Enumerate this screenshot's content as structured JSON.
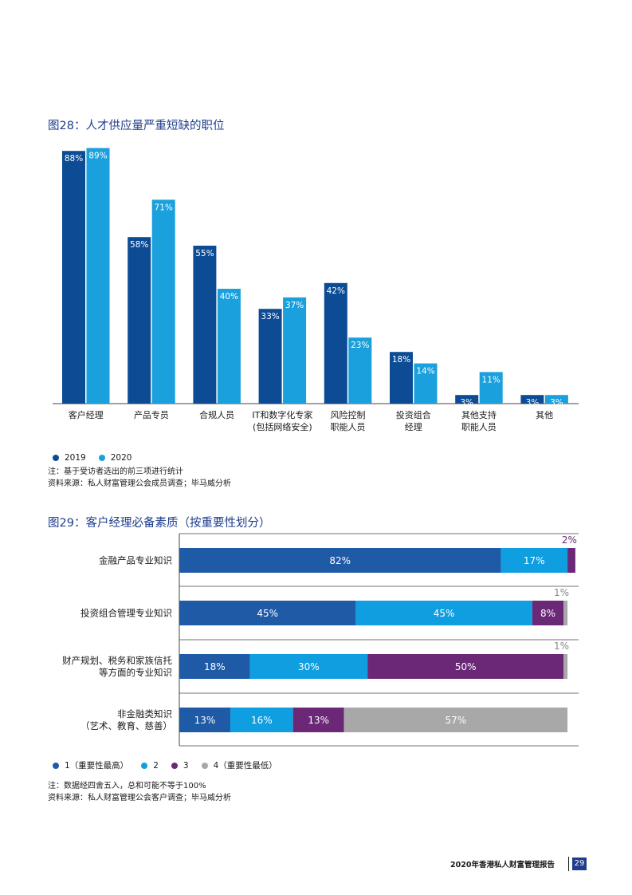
{
  "colors": {
    "y2019": "#0d4c95",
    "y2020": "#1aa0dc",
    "rank1": "#1f5aa6",
    "rank2": "#0f9ee0",
    "rank3": "#6a2877",
    "rank4": "#a8a8a8",
    "title": "#1e3d8c"
  },
  "fig28": {
    "title": "图28：人才供应量严重短缺的职位",
    "legend": [
      "2019",
      "2020"
    ],
    "note": "注：基于受访者选出的前三项进行统计",
    "source": "资料来源：私人财富管理公会成员调查；毕马威分析"
  },
  "fig29": {
    "title": "图29：客户经理必备素质（按重要性划分）",
    "legend": [
      "1（重要性最高）",
      "2",
      "3",
      "4（重要性最低）"
    ],
    "note": "注：数据经四舍五入，总和可能不等于100%",
    "source": "资料来源：私人财富管理公会客户调查；毕马威分析"
  },
  "chart_data": [
    {
      "type": "bar",
      "title": "图28：人才供应量严重短缺的职位",
      "categories": [
        [
          "客户经理"
        ],
        [
          "产品专员"
        ],
        [
          "合规人员"
        ],
        [
          "IT和数字化专家",
          "(包括网络安全)"
        ],
        [
          "风险控制",
          "职能人员"
        ],
        [
          "投资组合",
          "经理"
        ],
        [
          "其他支持",
          "职能人员"
        ],
        [
          "其他"
        ]
      ],
      "series": [
        {
          "name": "2019",
          "values": [
            88,
            58,
            55,
            33,
            42,
            18,
            3,
            3
          ]
        },
        {
          "name": "2020",
          "values": [
            89,
            71,
            40,
            37,
            23,
            14,
            11,
            3
          ]
        }
      ],
      "ylim": [
        0,
        100
      ],
      "value_suffix": "%",
      "grid": false,
      "legend_position": "bottom-left"
    },
    {
      "type": "bar",
      "orientation": "horizontal",
      "stacked": true,
      "title": "图29：客户经理必备素质（按重要性划分）",
      "categories": [
        [
          "金融产品专业知识"
        ],
        [
          "投资组合管理专业知识"
        ],
        [
          "财产规划、税务和家族信托",
          "等方面的专业知识"
        ],
        [
          "非金融类知识",
          "（艺术、教育、慈善）"
        ]
      ],
      "series": [
        {
          "name": "1（重要性最高）",
          "values": [
            82,
            45,
            18,
            13
          ]
        },
        {
          "name": "2",
          "values": [
            17,
            45,
            30,
            16
          ]
        },
        {
          "name": "3",
          "values": [
            2,
            8,
            50,
            13
          ]
        },
        {
          "name": "4（重要性最低）",
          "values": [
            0,
            1,
            1,
            57
          ]
        }
      ],
      "xlim": [
        0,
        100
      ],
      "value_suffix": "%",
      "grid": false,
      "legend_position": "bottom-left"
    }
  ],
  "footer": {
    "text": "2020年香港私人财富管理报告",
    "page": "29"
  }
}
